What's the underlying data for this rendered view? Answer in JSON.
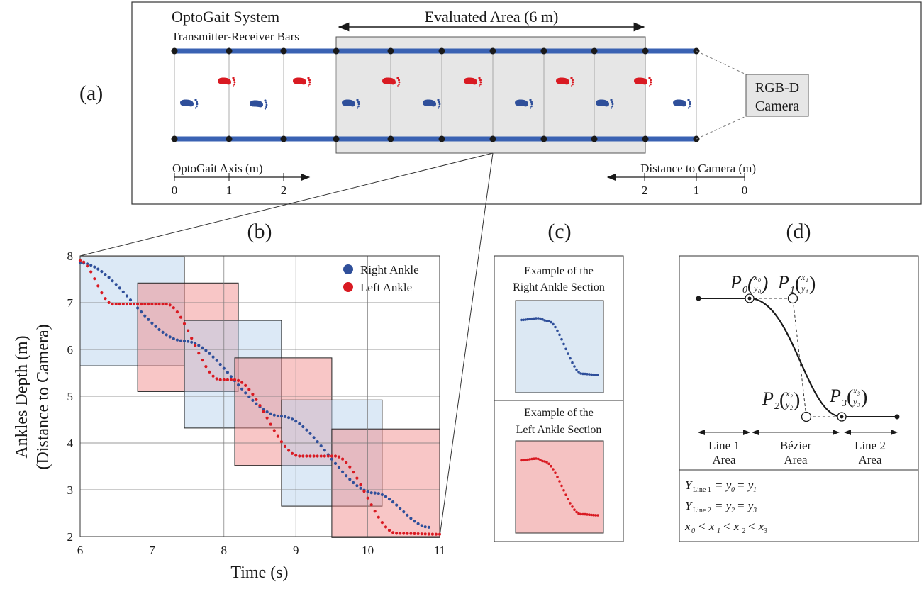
{
  "panel_a": {
    "label": "(a)",
    "system_title": "OptoGait System",
    "system_subtitle": "Transmitter-Receiver Bars",
    "evaluated_area": "Evaluated Area (6 m)",
    "camera_line1": "RGB-D",
    "camera_line2": "Camera",
    "optogait_axis": {
      "label": "OptoGait Axis (m)",
      "ticks": [
        "0",
        "1",
        "2"
      ]
    },
    "camera_axis": {
      "label": "Distance to Camera (m)",
      "ticks": [
        "2",
        "1",
        "0"
      ]
    },
    "colors": {
      "bar": "#3a62b3",
      "right_foot": "#2f4f9a",
      "left_foot": "#d91a22",
      "area": "#e6e6e6"
    },
    "feet": [
      {
        "side": "right",
        "icon": "right-footprint-icon"
      },
      {
        "side": "left",
        "icon": "left-footprint-icon"
      }
    ]
  },
  "panel_b": {
    "label": "(b)",
    "xlabel": "Time (s)",
    "ylabel_line1": "Ankles Depth (m)",
    "ylabel_line2": "(Distance to Camera)",
    "legend": [
      "Right Ankle",
      "Left Ankle"
    ]
  },
  "panel_c": {
    "label": "(c)",
    "right_title_1": "Example of the",
    "right_title_2": "Right Ankle Section",
    "left_title_1": "Example of the",
    "left_title_2": "Left Ankle Section"
  },
  "panel_d": {
    "label": "(d)",
    "points": [
      "P0",
      "P1",
      "P2",
      "P3"
    ],
    "areas": [
      [
        "Line 1",
        "Area"
      ],
      [
        "Bézier",
        "Area"
      ],
      [
        "Line 2",
        "Area"
      ]
    ],
    "equations": [
      "Y_Line 1 = y_0 = y_1",
      "Y_Line 2 = y_2 = y_3",
      "x_0 < x_1 < x_2 < x_3"
    ]
  },
  "chart_data": {
    "type": "scatter",
    "x_range": [
      6,
      11
    ],
    "y_range": [
      2,
      8
    ],
    "x_ticks": [
      6,
      7,
      8,
      9,
      10,
      11
    ],
    "y_ticks": [
      2,
      3,
      4,
      5,
      6,
      7,
      8
    ],
    "grid": true,
    "legend_position": "top-right",
    "series": [
      {
        "name": "Right Ankle",
        "color": "#2f4f9a",
        "plateaus": [
          [
            6.0,
            7.85
          ],
          [
            7.45,
            6.18
          ],
          [
            8.8,
            4.57
          ],
          [
            10.1,
            2.93
          ],
          [
            10.85,
            2.2
          ]
        ],
        "note_values_from_axis": true
      },
      {
        "name": "Left Ankle",
        "color": "#d91a22",
        "plateaus": [
          [
            6.0,
            7.9
          ],
          [
            6.45,
            6.97
          ],
          [
            7.2,
            6.97
          ],
          [
            7.95,
            5.35
          ],
          [
            8.15,
            5.35
          ],
          [
            9.05,
            3.72
          ],
          [
            9.55,
            3.72
          ],
          [
            10.4,
            2.07
          ],
          [
            11.0,
            2.05
          ]
        ]
      }
    ],
    "sections": [
      {
        "side": "right",
        "x": [
          6.0,
          7.45
        ],
        "y": [
          5.65,
          7.98
        ]
      },
      {
        "side": "left",
        "x": [
          6.8,
          8.2
        ],
        "y": [
          5.1,
          7.42
        ]
      },
      {
        "side": "right",
        "x": [
          7.45,
          8.8
        ],
        "y": [
          4.32,
          6.62
        ]
      },
      {
        "side": "left",
        "x": [
          8.15,
          9.5
        ],
        "y": [
          3.52,
          5.82
        ]
      },
      {
        "side": "right",
        "x": [
          8.8,
          10.2
        ],
        "y": [
          2.65,
          4.92
        ]
      },
      {
        "side": "left",
        "x": [
          9.5,
          11.0
        ],
        "y": [
          1.98,
          4.3
        ]
      }
    ]
  }
}
